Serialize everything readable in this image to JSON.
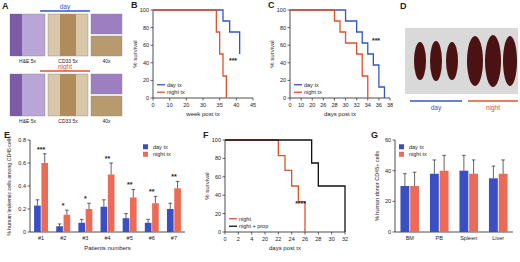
{
  "chart_data": [
    {
      "panel": "B",
      "type": "line",
      "line_style": "step",
      "x_label": "week post tx",
      "y_label": "% survival",
      "x": [
        0,
        33,
        34,
        35,
        36,
        37,
        38,
        41
      ],
      "series": [
        {
          "name": "day tx",
          "color": "#3355cc",
          "values": [
            100,
            100,
            100,
            100,
            87.5,
            87.5,
            75,
            50
          ]
        },
        {
          "name": "night tx",
          "color": "#e0522b",
          "values": [
            100,
            100,
            75,
            50,
            25,
            0,
            null,
            null
          ]
        }
      ],
      "xlim": [
        0,
        45
      ],
      "xticks": [
        0,
        10,
        20,
        30,
        35,
        40,
        45
      ],
      "ylim": [
        0,
        100
      ],
      "yticks": [
        0,
        20,
        40,
        60,
        80,
        100
      ],
      "legend": "lower left",
      "annotation": "***"
    },
    {
      "panel": "C",
      "type": "line",
      "line_style": "step",
      "x_label": "days post tx",
      "y_label": "% survival",
      "x": [
        0,
        26,
        28,
        29,
        30,
        31,
        32,
        33,
        34,
        35,
        36,
        37
      ],
      "series": [
        {
          "name": "day tx",
          "color": "#3355cc",
          "values": [
            100,
            100,
            100,
            100,
            87.5,
            87.5,
            75,
            62.5,
            50,
            37.5,
            12.5,
            0
          ]
        },
        {
          "name": "night tx",
          "color": "#e0522b",
          "values": [
            100,
            100,
            87.5,
            75,
            62.5,
            62.5,
            50,
            25,
            0,
            null,
            null,
            null
          ]
        }
      ],
      "xlim": [
        0,
        38
      ],
      "xticks": [
        0,
        10,
        20,
        26,
        28,
        30,
        32,
        34,
        36,
        38
      ],
      "ylim": [
        0,
        100
      ],
      "yticks": [
        0,
        20,
        40,
        60,
        80,
        100
      ],
      "legend": "lower left",
      "annotation": "***"
    },
    {
      "panel": "E",
      "type": "bar",
      "x_label": "Patients numbers",
      "y_label": "% human leukemic cells among CD45 cells",
      "categories": [
        "#1",
        "#2",
        "#3",
        "#4",
        "#5",
        "#6",
        "#7"
      ],
      "series": [
        {
          "name": "day tx",
          "color": "#3b4fc4",
          "values": [
            0.23,
            0.05,
            0.08,
            0.22,
            0.12,
            0.08,
            0.2
          ],
          "errors": [
            0.05,
            0.02,
            0.03,
            0.06,
            0.04,
            0.03,
            0.05
          ]
        },
        {
          "name": "night tx",
          "color": "#ec6b56",
          "values": [
            0.6,
            0.15,
            0.2,
            0.5,
            0.3,
            0.25,
            0.38
          ],
          "errors": [
            0.08,
            0.04,
            0.05,
            0.1,
            0.07,
            0.06,
            0.06
          ]
        }
      ],
      "annotations": [
        "***",
        "*",
        "*",
        "**",
        "**",
        "**",
        "**"
      ],
      "ylim": [
        0,
        0.8
      ],
      "yticks": [
        0,
        0.2,
        0.4,
        0.6,
        0.8
      ],
      "legend": "upper right"
    },
    {
      "panel": "F",
      "type": "line",
      "line_style": "step",
      "x_label": "days post tx",
      "y_label": "% survival",
      "x": [
        0,
        20,
        22,
        23,
        24,
        25,
        26,
        27,
        28,
        30,
        32
      ],
      "series": [
        {
          "name": "night",
          "color": "#e0522b",
          "values": [
            100,
            100,
            83,
            67,
            50,
            33,
            0,
            null,
            null,
            null,
            null
          ]
        },
        {
          "name": "night + prop",
          "color": "#111111",
          "values": [
            100,
            100,
            100,
            100,
            100,
            100,
            100,
            75,
            50,
            50,
            0
          ]
        }
      ],
      "xlim": [
        0,
        32
      ],
      "xticks": [
        0,
        2,
        4,
        20,
        22,
        24,
        26,
        28,
        30,
        32
      ],
      "ylim": [
        0,
        100
      ],
      "yticks": [
        0,
        20,
        40,
        60,
        80,
        100
      ],
      "legend": "lower left",
      "annotation": "****"
    },
    {
      "panel": "G",
      "type": "bar",
      "y_label": "% human donor CD45+ cells",
      "categories": [
        "BM",
        "PB",
        "Spleen",
        "Liver"
      ],
      "series": [
        {
          "name": "day tx",
          "color": "#3b4fc4",
          "values": [
            30,
            38,
            40,
            35
          ],
          "errors": [
            8,
            9,
            10,
            8
          ]
        },
        {
          "name": "night tx",
          "color": "#ec6b56",
          "values": [
            30,
            40,
            38,
            38
          ],
          "errors": [
            9,
            10,
            9,
            9
          ]
        }
      ],
      "ylim": [
        0,
        60
      ],
      "yticks": [
        0,
        20,
        40,
        60
      ],
      "legend": "upper left"
    }
  ],
  "images": [
    {
      "panel": "A",
      "rows": [
        {
          "label": "day",
          "captions": [
            "H&E 5x",
            "CD33 5x",
            "40x"
          ]
        },
        {
          "label": "night",
          "captions": [
            "H&E 5x",
            "CD33 5x",
            "40x"
          ]
        }
      ]
    },
    {
      "panel": "D",
      "groups": [
        "day",
        "night"
      ]
    }
  ]
}
